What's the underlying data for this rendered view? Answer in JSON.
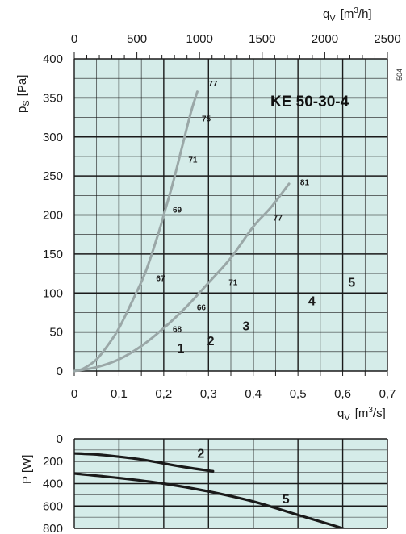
{
  "chart_data": [
    {
      "type": "line",
      "title": "KE  50-30-4",
      "xlabel": "qV [m3/s]",
      "xlabel_parts": {
        "q": "q",
        "sub": "V",
        "unit_open": "[m",
        "sup": "3",
        "unit_close": "/s]"
      },
      "x2label": "qV [m3/h]",
      "x2label_parts": {
        "q": "q",
        "sub": "V",
        "unit_open": "[m",
        "sup": "3",
        "unit_close": "/h]"
      },
      "ylabel": "pS [Pa]",
      "ylabel_parts": {
        "p": "p",
        "sub": "S",
        "unit": "[Pa]"
      },
      "xlim": [
        0,
        0.7
      ],
      "x2lim": [
        0,
        2500
      ],
      "ylim": [
        0,
        400
      ],
      "xticks": [
        "0",
        "0,1",
        "0,2",
        "0,3",
        "0,4",
        "0,5",
        "0,6",
        "0,7"
      ],
      "x2ticks": [
        "0",
        "500",
        "1000",
        "1500",
        "2000",
        "2500"
      ],
      "yticks": [
        "0",
        "50",
        "100",
        "150",
        "200",
        "250",
        "300",
        "350",
        "400"
      ],
      "grid": true,
      "series": [
        {
          "x": [
            0,
            0.02,
            0.05,
            0.08,
            0.1,
            0.13,
            0.16,
            0.19,
            0.2,
            0.22,
            0.24,
            0.26,
            0.275
          ],
          "y": [
            0,
            3,
            15,
            37,
            55,
            90,
            128,
            180,
            200,
            240,
            285,
            330,
            358
          ]
        },
        {
          "x": [
            0,
            0.05,
            0.1,
            0.15,
            0.2,
            0.25,
            0.3,
            0.35,
            0.4,
            0.44,
            0.48
          ],
          "y": [
            0,
            5,
            15,
            32,
            55,
            82,
            113,
            145,
            185,
            210,
            240
          ]
        }
      ],
      "efficiency_labels": [
        {
          "text": "77",
          "x": 0.3,
          "y": 365
        },
        {
          "text": "75",
          "x": 0.285,
          "y": 320
        },
        {
          "text": "71",
          "x": 0.255,
          "y": 267
        },
        {
          "text": "69",
          "x": 0.22,
          "y": 203
        },
        {
          "text": "67",
          "x": 0.183,
          "y": 115
        },
        {
          "text": "66",
          "x": 0.274,
          "y": 78
        },
        {
          "text": "68",
          "x": 0.22,
          "y": 50
        },
        {
          "text": "71",
          "x": 0.345,
          "y": 110
        },
        {
          "text": "77",
          "x": 0.445,
          "y": 193
        },
        {
          "text": "81",
          "x": 0.505,
          "y": 238
        }
      ],
      "curve_labels": [
        {
          "text": "1",
          "x": 0.23,
          "y": 24
        },
        {
          "text": "2",
          "x": 0.297,
          "y": 33
        },
        {
          "text": "3",
          "x": 0.376,
          "y": 52
        },
        {
          "text": "4",
          "x": 0.523,
          "y": 84
        },
        {
          "text": "5",
          "x": 0.612,
          "y": 108
        }
      ]
    },
    {
      "type": "line",
      "ylabel": "P [W]",
      "xlim": [
        0,
        0.7
      ],
      "ylim": [
        0,
        800
      ],
      "yticks": [
        "0",
        "200",
        "400",
        "600",
        "800"
      ],
      "grid": true,
      "series": [
        {
          "name": "2",
          "x": [
            0,
            0.05,
            0.1,
            0.15,
            0.2,
            0.25,
            0.31
          ],
          "y": [
            130,
            140,
            160,
            185,
            220,
            255,
            290
          ]
        },
        {
          "name": "5",
          "x": [
            0,
            0.1,
            0.2,
            0.3,
            0.4,
            0.5,
            0.6,
            0.65
          ],
          "y": [
            310,
            350,
            400,
            470,
            560,
            680,
            800,
            880
          ]
        }
      ],
      "curve_labels": [
        {
          "text": "2",
          "x": 0.275,
          "y": 170
        },
        {
          "text": "5",
          "x": 0.465,
          "y": 575
        }
      ]
    }
  ],
  "side_text": "504",
  "colors": {
    "background": "#d5ece9",
    "grid": "#1a1a1a",
    "curve_main": "#9aa7a7",
    "curve_power": "#1a1a1a"
  }
}
